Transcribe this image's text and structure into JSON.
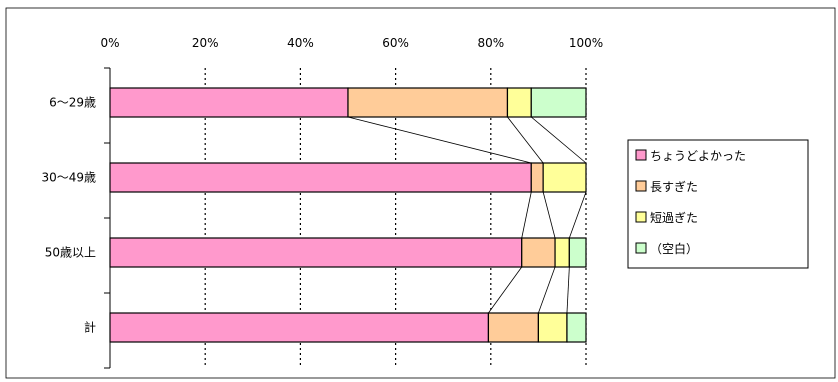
{
  "chart_data": {
    "type": "bar",
    "orientation": "horizontal",
    "stacked": "percent",
    "title": "",
    "xlabel": "",
    "ylabel": "",
    "xlim": [
      0,
      100
    ],
    "x_ticks": [
      "0%",
      "20%",
      "40%",
      "60%",
      "80%",
      "100%"
    ],
    "categories": [
      "6～29歳",
      "30～49歳",
      "50歳以上",
      "計"
    ],
    "series": [
      {
        "name": "ちょうどよかった",
        "color": "#FF99CC",
        "values": [
          50,
          88.5,
          86.5,
          79.5
        ]
      },
      {
        "name": "長すぎた",
        "color": "#FFCC99",
        "values": [
          33.5,
          2.5,
          7,
          10.5
        ]
      },
      {
        "name": "短過ぎた",
        "color": "#FFFF99",
        "values": [
          5,
          9,
          3,
          6
        ]
      },
      {
        "name": "（空白）",
        "color": "#CCFFCC",
        "values": [
          11.5,
          0,
          3.5,
          4
        ]
      }
    ],
    "grid": "vertical-dotted",
    "series_lines": true,
    "legend": "right"
  }
}
